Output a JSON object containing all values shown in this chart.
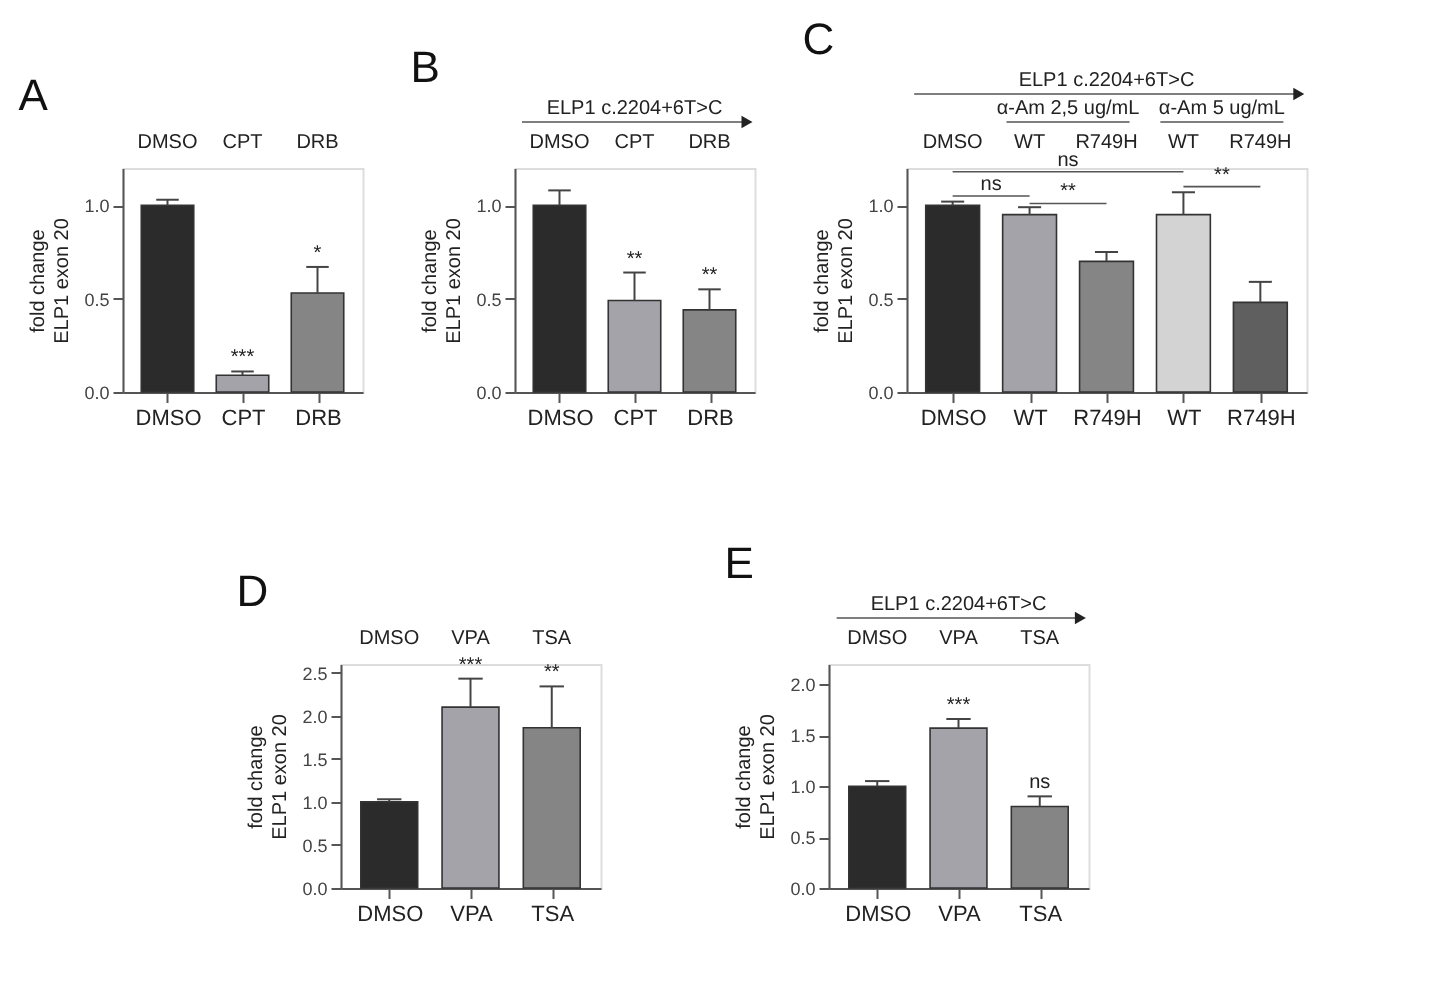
{
  "chart_data": [
    {
      "type": "bar",
      "title": "A",
      "ylabel": "fold change\nELP1 exon 20",
      "categories": [
        "DMSO",
        "CPT",
        "DRB"
      ],
      "values": [
        1.0,
        0.09,
        0.53
      ],
      "errors": [
        0.03,
        0.02,
        0.14
      ],
      "colors": [
        "#2b2b2b",
        "#a3a3a9",
        "#858585"
      ],
      "ylim": [
        0,
        1.2
      ],
      "yticks": [
        {
          "value": 0,
          "label": "0.0"
        },
        {
          "value": 0.5,
          "label": "0.5"
        },
        {
          "value": 1,
          "label": "1.0"
        }
      ],
      "annotations": [
        "DMSO",
        "CPT",
        "DRB",
        {
          "text": "***",
          "x": "CPT",
          "y": 0.11
        },
        {
          "text": "*",
          "x": "DRB",
          "y": 0.67
        }
      ]
    },
    {
      "type": "bar",
      "title": "B",
      "ylabel": "fold change\nELP1 exon 20",
      "categories": [
        "DMSO",
        "CPT",
        "DRB"
      ],
      "values": [
        1.0,
        0.49,
        0.44
      ],
      "errors": [
        0.08,
        0.15,
        0.11
      ],
      "colors": [
        "#2b2b2b",
        "#a3a3a9",
        "#858585"
      ],
      "ylim": [
        0,
        1.2
      ],
      "yticks": [
        {
          "value": 0,
          "label": "0.0"
        },
        {
          "value": 0.5,
          "label": "0.5"
        },
        {
          "value": 1,
          "label": "1.0"
        }
      ],
      "annotations": [
        "DMSO",
        "CPT",
        "DRB",
        "ELP1 c.2204+6T>C",
        {
          "text": "**",
          "x": "CPT",
          "y": 0.64
        },
        {
          "text": "**",
          "x": "DRB",
          "y": 0.55
        }
      ]
    },
    {
      "type": "bar",
      "title": "C",
      "ylabel": "fold change\nELP1 exon 20",
      "categories": [
        "DMSO",
        "WT",
        "R749H",
        "WT",
        "R749H"
      ],
      "values": [
        1.0,
        0.95,
        0.7,
        0.95,
        0.48
      ],
      "errors": [
        0.02,
        0.04,
        0.05,
        0.12,
        0.11
      ],
      "colors": [
        "#2b2b2b",
        "#a3a3a9",
        "#858585",
        "#d3d3d3",
        "#5f5f5f"
      ],
      "ylim": [
        0,
        1.2
      ],
      "yticks": [
        {
          "value": 0,
          "label": "0.0"
        },
        {
          "value": 0.5,
          "label": "0.5"
        },
        {
          "value": 1,
          "label": "1.0"
        }
      ],
      "annotations": [
        "DMSO",
        "WT",
        "R749H",
        "WT",
        "R749H",
        "ELP1 c.2204+6T>C",
        "α-Am 2,5 ug/mL",
        "α-Am 5 ug/mL",
        "ns",
        "**",
        "ns",
        "**"
      ]
    },
    {
      "type": "bar",
      "title": "D",
      "ylabel": "fold change\nELP1 exon 20",
      "categories": [
        "DMSO",
        "VPA",
        "TSA"
      ],
      "values": [
        1.0,
        2.1,
        1.86
      ],
      "errors": [
        0.03,
        0.33,
        0.48
      ],
      "colors": [
        "#2b2b2b",
        "#a3a3a9",
        "#858585"
      ],
      "ylim": [
        0,
        2.6
      ],
      "yticks": [
        {
          "value": 0,
          "label": "0.0"
        },
        {
          "value": 0.5,
          "label": "0.5"
        },
        {
          "value": 1,
          "label": "1.0"
        },
        {
          "value": 1.5,
          "label": "1.5"
        },
        {
          "value": 2,
          "label": "2.0"
        },
        {
          "value": 2.5,
          "label": "2.5"
        }
      ],
      "annotations": [
        "DMSO",
        "VPA",
        "TSA",
        {
          "text": "***",
          "x": "VPA",
          "y": 2.43
        },
        {
          "text": "**",
          "x": "TSA",
          "y": 2.34
        }
      ]
    },
    {
      "type": "bar",
      "title": "E",
      "ylabel": "fold change\nELP1 exon 20",
      "categories": [
        "DMSO",
        "VPA",
        "TSA"
      ],
      "values": [
        1.0,
        1.57,
        0.8
      ],
      "errors": [
        0.05,
        0.09,
        0.1
      ],
      "colors": [
        "#2b2b2b",
        "#a3a3a9",
        "#858585"
      ],
      "ylim": [
        0,
        2.2
      ],
      "yticks": [
        {
          "value": 0,
          "label": "0.0"
        },
        {
          "value": 0.5,
          "label": "0.5"
        },
        {
          "value": 1,
          "label": "1.0"
        },
        {
          "value": 1.5,
          "label": "1.5"
        },
        {
          "value": 2,
          "label": "2.0"
        }
      ],
      "annotations": [
        "DMSO",
        "VPA",
        "TSA",
        "ELP1 c.2204+6T>C",
        {
          "text": "***",
          "x": "VPA",
          "y": 1.66
        },
        {
          "text": "ns",
          "x": "TSA",
          "y": 0.9
        }
      ]
    }
  ]
}
